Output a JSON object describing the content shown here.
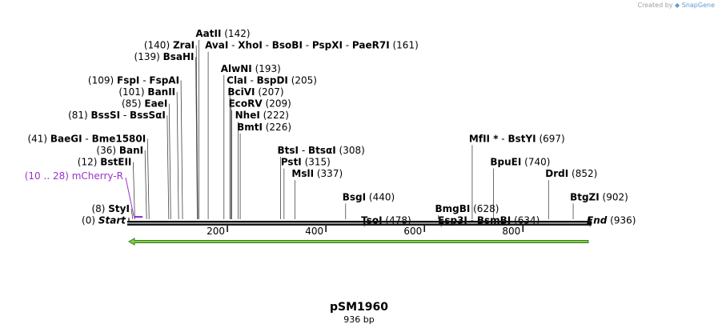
{
  "credit": {
    "prefix": "Created by",
    "brand": "SnapGene"
  },
  "title": "pSM1960",
  "subtitle": "936 bp",
  "sequence_length": 936,
  "ruler_ticks": [
    {
      "value": 200,
      "label": "200"
    },
    {
      "value": 400,
      "label": "400"
    },
    {
      "value": 600,
      "label": "600"
    },
    {
      "value": 800,
      "label": "800"
    }
  ],
  "sites": [
    {
      "row": 0,
      "bp": 142,
      "names": [
        "AatII"
      ],
      "pos_label": "(142)",
      "side": "right"
    },
    {
      "row": 1,
      "bp": 140,
      "names": [
        "ZraI"
      ],
      "pos_label": "(140)",
      "side": "left"
    },
    {
      "row": 1,
      "bp": 161,
      "names": [
        "AvaI",
        "XhoI",
        "BsoBI",
        "PspXI",
        "PaeR7I"
      ],
      "pos_label": "(161)",
      "side": "right"
    },
    {
      "row": 2,
      "bp": 139,
      "names": [
        "BsaHI"
      ],
      "pos_label": "(139)",
      "side": "left"
    },
    {
      "row": 3,
      "bp": 193,
      "names": [
        "AlwNI"
      ],
      "pos_label": "(193)",
      "side": "right"
    },
    {
      "row": 4,
      "bp": 109,
      "names": [
        "FspI",
        "FspAI"
      ],
      "pos_label": "(109)",
      "side": "left"
    },
    {
      "row": 4,
      "bp": 205,
      "names": [
        "ClaI",
        "BspDI"
      ],
      "pos_label": "(205)",
      "side": "right"
    },
    {
      "row": 5,
      "bp": 101,
      "names": [
        "BanII"
      ],
      "pos_label": "(101)",
      "side": "left"
    },
    {
      "row": 5,
      "bp": 207,
      "names": [
        "BciVI"
      ],
      "pos_label": "(207)",
      "side": "right"
    },
    {
      "row": 6,
      "bp": 85,
      "names": [
        "EaeI"
      ],
      "pos_label": "(85)",
      "side": "left"
    },
    {
      "row": 6,
      "bp": 209,
      "names": [
        "EcoRV"
      ],
      "pos_label": "(209)",
      "side": "right"
    },
    {
      "row": 7,
      "bp": 81,
      "names": [
        "BssSI",
        "BssSαI"
      ],
      "pos_label": "(81)",
      "side": "left"
    },
    {
      "row": 7,
      "bp": 222,
      "names": [
        "NheI"
      ],
      "pos_label": "(222)",
      "side": "right"
    },
    {
      "row": 8,
      "bp": 226,
      "names": [
        "BmtI"
      ],
      "pos_label": "(226)",
      "side": "right"
    },
    {
      "row": 9,
      "bp": 41,
      "names": [
        "BaeGI",
        "Bme1580I"
      ],
      "pos_label": "(41)",
      "side": "left"
    },
    {
      "row": 9,
      "bp": 697,
      "names": [
        "MfII *",
        "BstYI"
      ],
      "pos_label": "(697)",
      "side": "right"
    },
    {
      "row": 10,
      "bp": 36,
      "names": [
        "BanI"
      ],
      "pos_label": "(36)",
      "side": "left"
    },
    {
      "row": 10,
      "bp": 308,
      "names": [
        "BtsI",
        "BtsαI"
      ],
      "pos_label": "(308)",
      "side": "right"
    },
    {
      "row": 11,
      "bp": 12,
      "names": [
        "BstEII"
      ],
      "pos_label": "(12)",
      "side": "left"
    },
    {
      "row": 11,
      "bp": 315,
      "names": [
        "PstI"
      ],
      "pos_label": "(315)",
      "side": "right"
    },
    {
      "row": 11,
      "bp": 740,
      "names": [
        "BpuEI"
      ],
      "pos_label": "(740)",
      "side": "right"
    },
    {
      "row": 12,
      "bp": 337,
      "names": [
        "MslI"
      ],
      "pos_label": "(337)",
      "side": "right"
    },
    {
      "row": 12,
      "bp": 852,
      "names": [
        "DrdI"
      ],
      "pos_label": "(852)",
      "side": "right"
    },
    {
      "row": 14,
      "bp": 440,
      "names": [
        "BsgI"
      ],
      "pos_label": "(440)",
      "side": "right"
    },
    {
      "row": 14,
      "bp": 902,
      "names": [
        "BtgZI"
      ],
      "pos_label": "(902)",
      "side": "right"
    },
    {
      "row": 15,
      "bp": 8,
      "names": [
        "StyI"
      ],
      "pos_label": "(8)",
      "side": "left"
    },
    {
      "row": 15,
      "bp": 628,
      "names": [
        "BmgBI"
      ],
      "pos_label": "(628)",
      "side": "right"
    },
    {
      "row": 16,
      "bp": 478,
      "names": [
        "TsoI"
      ],
      "pos_label": "(478)",
      "side": "right"
    },
    {
      "row": 16,
      "bp": 634,
      "names": [
        "Esp3I",
        "BsmBI"
      ],
      "pos_label": "(634)",
      "side": "right"
    }
  ],
  "ends": [
    {
      "row": 16,
      "bp": 0,
      "name": "Start",
      "pos_label": "(0)",
      "side": "left"
    },
    {
      "row": 16,
      "bp": 936,
      "name": "End",
      "pos_label": "(936)",
      "side": "right"
    }
  ],
  "features": [
    {
      "name": "mCherry-R",
      "range_label": "(10 .. 28)",
      "start": 10,
      "end": 28,
      "color": "#9932cc"
    }
  ],
  "orf": {
    "start": 0,
    "end": 936,
    "direction": "reverse",
    "color": "#88cc33",
    "outline": "#2e7d32"
  }
}
